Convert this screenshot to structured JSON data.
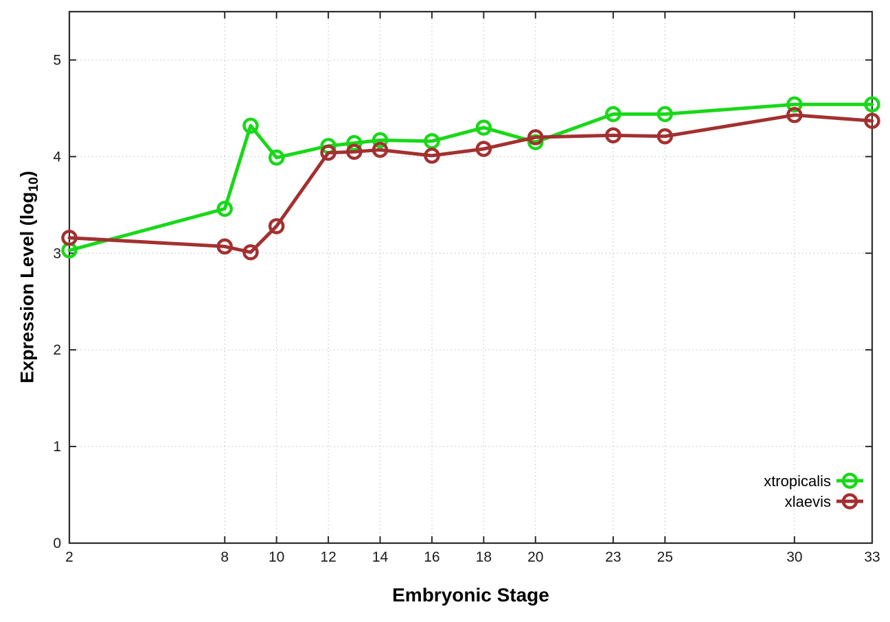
{
  "chart_data": {
    "type": "line",
    "title": "",
    "xlabel": "Embryonic Stage",
    "ylabel_parts": {
      "pre": "Expression Level (log",
      "sub": "10",
      "post": ")"
    },
    "x": [
      2,
      8,
      9,
      10,
      12,
      13,
      14,
      16,
      18,
      20,
      23,
      25,
      30,
      33
    ],
    "series": [
      {
        "name": "xtropicalis",
        "color": "#18d818",
        "values": [
          3.03,
          3.46,
          4.32,
          3.99,
          4.11,
          4.14,
          4.17,
          4.16,
          4.3,
          4.15,
          4.44,
          4.44,
          4.54,
          4.54
        ]
      },
      {
        "name": "xlaevis",
        "color": "#a33030",
        "values": [
          3.16,
          3.07,
          3.01,
          3.28,
          4.04,
          4.05,
          4.07,
          4.01,
          4.08,
          4.2,
          4.22,
          4.21,
          4.43,
          4.37
        ]
      }
    ],
    "xlim": [
      2,
      33
    ],
    "ylim": [
      0,
      5.5
    ],
    "xticks": [
      2,
      8,
      10,
      12,
      14,
      16,
      18,
      20,
      23,
      25,
      30,
      33
    ],
    "yticks": [
      0,
      1,
      2,
      3,
      4,
      5
    ],
    "grid": true,
    "legend_position": "bottom-right",
    "marker": "open-circle"
  },
  "style": {
    "axis_color": "#2a2a2a",
    "grid_color": "#c6c6c6",
    "tick_label_color": "#1a1a1a",
    "background": "#ffffff"
  }
}
